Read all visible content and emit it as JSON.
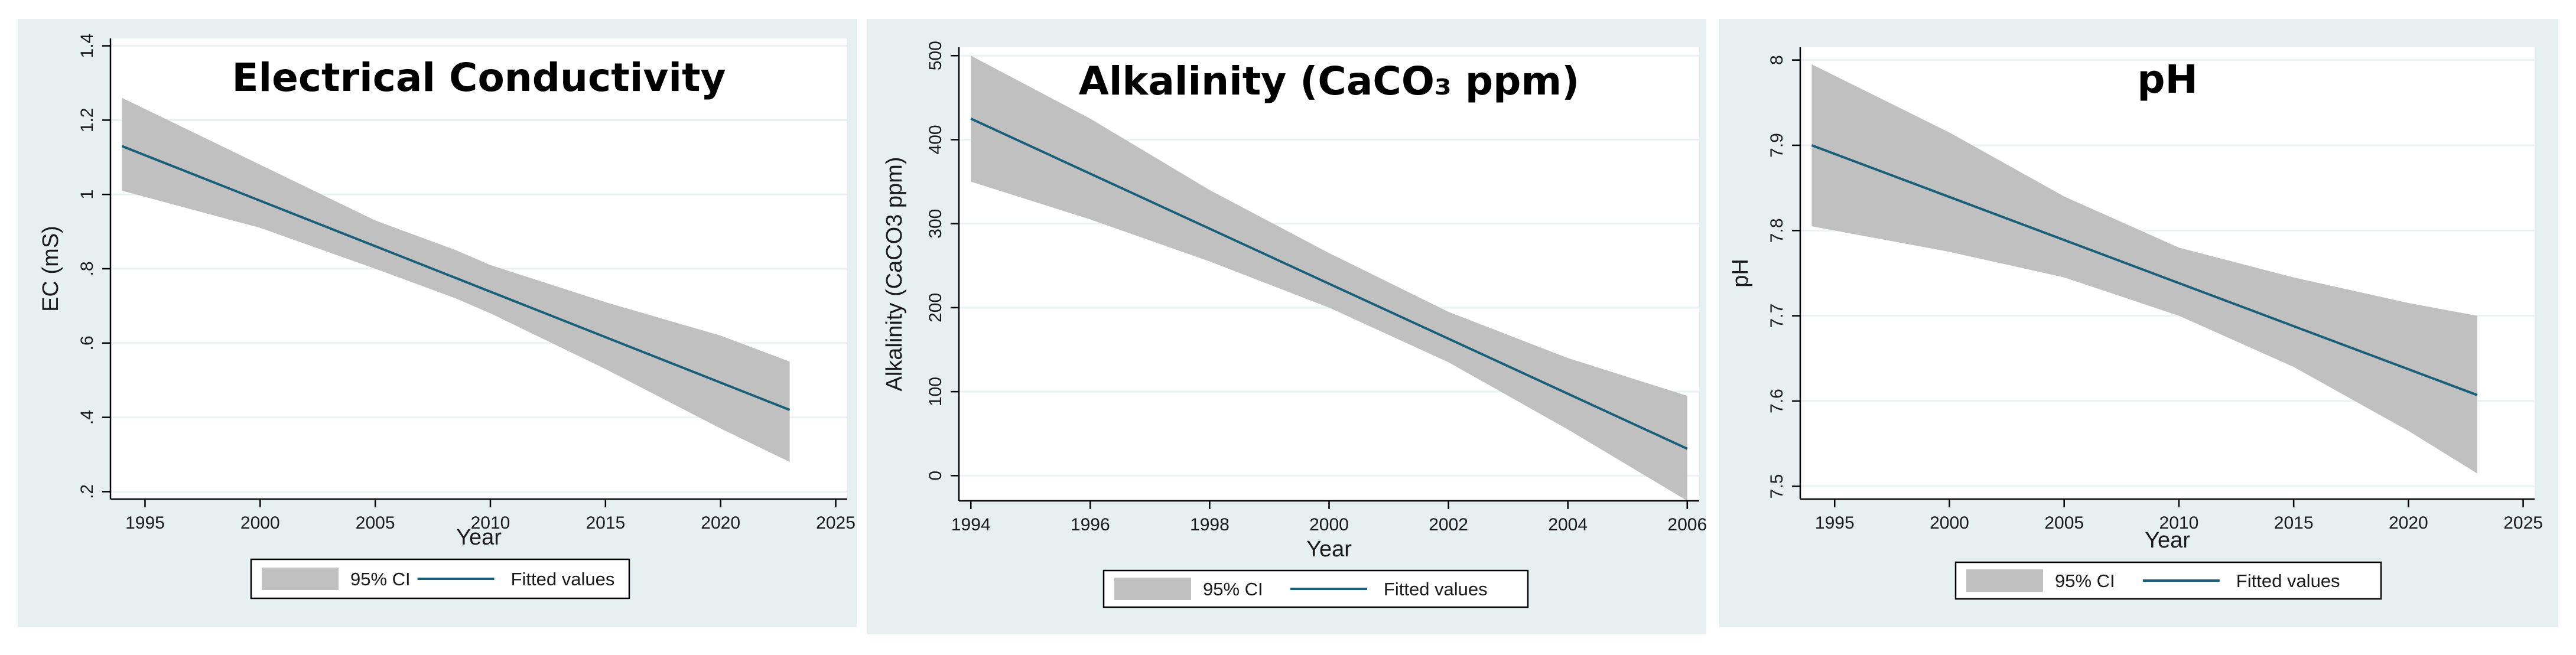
{
  "colors": {
    "panel_bg": "#e6f0f1",
    "ci_band": "#c0c0c0",
    "fit_line": "#1a5f7a"
  },
  "chart_data": [
    {
      "type": "area",
      "title": "Electrical Conductivity",
      "xlabel": "Year",
      "ylabel": "EC (mS)",
      "xlim": [
        1993.5,
        2025.5
      ],
      "ylim": [
        0.18,
        1.42
      ],
      "xticks": [
        1995,
        2000,
        2005,
        2010,
        2015,
        2020,
        2025
      ],
      "xtick_labels": [
        "1995",
        "2000",
        "2005",
        "2010",
        "2015",
        "2020",
        "2025"
      ],
      "yticks": [
        0.2,
        0.4,
        0.6,
        0.8,
        1.0,
        1.2,
        1.4
      ],
      "ytick_labels": [
        ".2",
        ".4",
        ".6",
        ".8",
        "1",
        "1.2",
        "1.4"
      ],
      "fit": {
        "x": [
          1994,
          2023
        ],
        "y": [
          1.13,
          0.42
        ]
      },
      "ci": {
        "x": [
          1994,
          2000,
          2005,
          2008.5,
          2010,
          2015,
          2020,
          2023
        ],
        "upper": [
          1.26,
          1.08,
          0.93,
          0.85,
          0.81,
          0.71,
          0.62,
          0.55
        ],
        "lower": [
          1.01,
          0.91,
          0.8,
          0.72,
          0.68,
          0.53,
          0.37,
          0.28
        ]
      },
      "legend": [
        {
          "label": "95% CI",
          "kind": "area"
        },
        {
          "label": "Fitted values",
          "kind": "line"
        }
      ]
    },
    {
      "type": "area",
      "title": "Alkalinity (CaCO₃ ppm)",
      "xlabel": "Year",
      "ylabel": "Alkalinity (CaCO3 ppm)",
      "xlim": [
        1993.8,
        2006.2
      ],
      "ylim": [
        -30,
        510
      ],
      "xticks": [
        1994,
        1996,
        1998,
        2000,
        2002,
        2004,
        2006
      ],
      "xtick_labels": [
        "1994",
        "1996",
        "1998",
        "2000",
        "2002",
        "2004",
        "2006"
      ],
      "yticks": [
        0,
        100,
        200,
        300,
        400,
        500
      ],
      "ytick_labels": [
        "0",
        "100",
        "200",
        "300",
        "400",
        "500"
      ],
      "fit": {
        "x": [
          1994,
          2006
        ],
        "y": [
          425,
          32
        ]
      },
      "ci": {
        "x": [
          1994,
          1996,
          1998,
          2000,
          2002,
          2004,
          2006
        ],
        "upper": [
          500,
          425,
          340,
          265,
          195,
          140,
          95
        ],
        "lower": [
          350,
          305,
          255,
          200,
          135,
          55,
          -30
        ]
      },
      "legend": [
        {
          "label": "95% CI",
          "kind": "area"
        },
        {
          "label": "Fitted values",
          "kind": "line"
        }
      ]
    },
    {
      "type": "area",
      "title": "pH",
      "xlabel": "Year",
      "ylabel": "pH",
      "xlim": [
        1993.5,
        2025.5
      ],
      "ylim": [
        7.485,
        8.015
      ],
      "xticks": [
        1995,
        2000,
        2005,
        2010,
        2015,
        2020,
        2025
      ],
      "xtick_labels": [
        "1995",
        "2000",
        "2005",
        "2010",
        "2015",
        "2020",
        "2025"
      ],
      "yticks": [
        7.5,
        7.6,
        7.7,
        7.8,
        7.9,
        8.0
      ],
      "ytick_labels": [
        "7.5",
        "7.6",
        "7.7",
        "7.8",
        "7.9",
        "8"
      ],
      "fit": {
        "x": [
          1994,
          2023
        ],
        "y": [
          7.9,
          7.607
        ]
      },
      "ci": {
        "x": [
          1994,
          2000,
          2005,
          2010,
          2015,
          2020,
          2023
        ],
        "upper": [
          7.995,
          7.915,
          7.84,
          7.78,
          7.745,
          7.715,
          7.7
        ],
        "lower": [
          7.805,
          7.775,
          7.745,
          7.7,
          7.64,
          7.565,
          7.515
        ]
      },
      "legend": [
        {
          "label": "95% CI",
          "kind": "area"
        },
        {
          "label": "Fitted values",
          "kind": "line"
        }
      ]
    }
  ]
}
